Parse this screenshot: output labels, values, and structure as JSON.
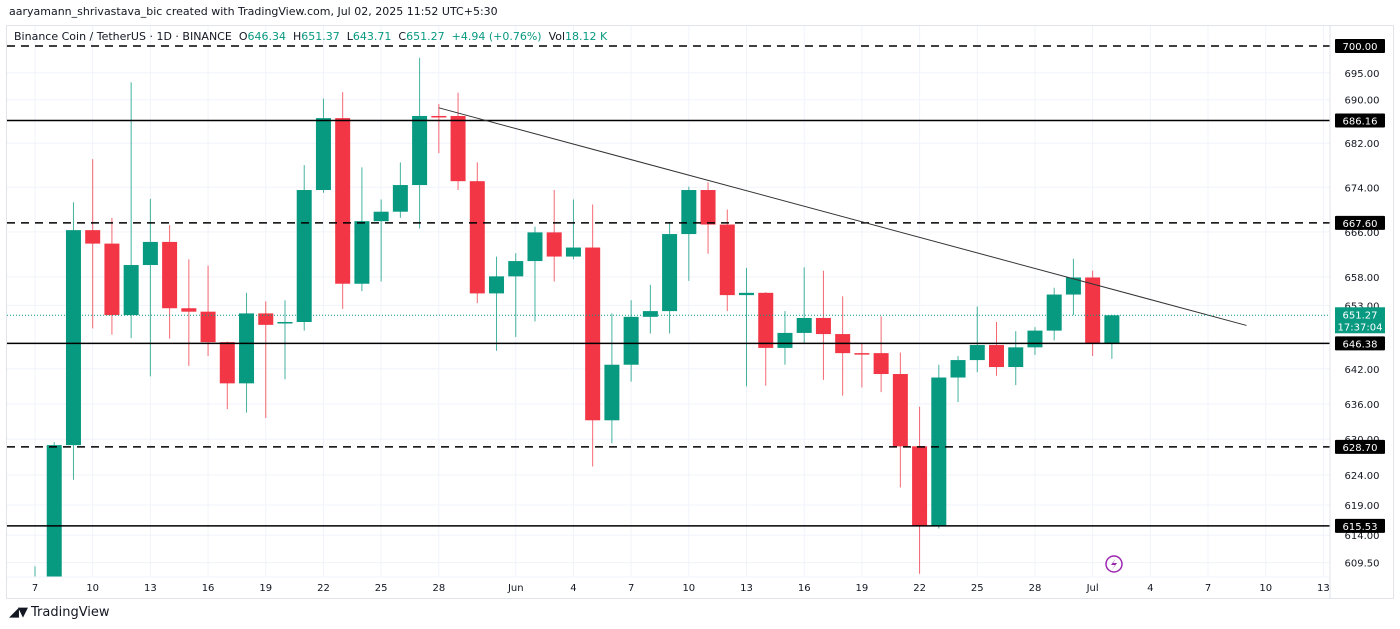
{
  "credit": "aaryamann_shrivastava_bic created with TradingView.com, Jul 02, 2025 11:52 UTC+5:30",
  "legend": {
    "symbol": "Binance Coin / TetherUS · 1D · BINANCE",
    "o_label": "O",
    "o": "646.34",
    "h_label": "H",
    "h": "651.37",
    "l_label": "L",
    "l": "643.71",
    "c_label": "C",
    "c": "651.27",
    "change": "+4.94 (+0.76%)",
    "vol_label": "Vol",
    "vol": "18.12 K"
  },
  "footer": {
    "brand": "TradingView",
    "logo": "TV"
  },
  "colors": {
    "up": "#089981",
    "down": "#f23645",
    "level": "#000000",
    "trend": "#333333",
    "grid": "#f0f3fa",
    "alert_icon": "#9c27b0"
  },
  "chart_data": {
    "type": "candlestick",
    "title": "",
    "y_scale": "log",
    "ylim": [
      607,
      703
    ],
    "grid": true,
    "y_ticks": [
      "695.00",
      "690.00",
      "682.00",
      "674.00",
      "666.00",
      "658.00",
      "653.00",
      "642.00",
      "636.00",
      "630.00",
      "624.00",
      "619.00",
      "614.00",
      "609.50"
    ],
    "x_ticks": [
      {
        "date": "May 7",
        "label": "7"
      },
      {
        "date": "May 10",
        "label": "10"
      },
      {
        "date": "May 13",
        "label": "13"
      },
      {
        "date": "May 16",
        "label": "16"
      },
      {
        "date": "May 19",
        "label": "19"
      },
      {
        "date": "May 22",
        "label": "22"
      },
      {
        "date": "May 25",
        "label": "25"
      },
      {
        "date": "May 28",
        "label": "28"
      },
      {
        "date": "Jun 1",
        "label": "Jun"
      },
      {
        "date": "Jun 4",
        "label": "4"
      },
      {
        "date": "Jun 7",
        "label": "7"
      },
      {
        "date": "Jun 10",
        "label": "10"
      },
      {
        "date": "Jun 13",
        "label": "13"
      },
      {
        "date": "Jun 16",
        "label": "16"
      },
      {
        "date": "Jun 19",
        "label": "19"
      },
      {
        "date": "Jun 22",
        "label": "22"
      },
      {
        "date": "Jun 25",
        "label": "25"
      },
      {
        "date": "Jun 28",
        "label": "28"
      },
      {
        "date": "Jul 1",
        "label": "Jul"
      },
      {
        "date": "Jul 4",
        "label": "4"
      },
      {
        "date": "Jul 7",
        "label": "7"
      },
      {
        "date": "Jul 10",
        "label": "10"
      },
      {
        "date": "Jul 13",
        "label": "13"
      }
    ],
    "candles_columns": [
      "date",
      "open",
      "high",
      "low",
      "close"
    ],
    "candles": [
      [
        "May 7",
        604.0,
        608.9,
        598.0,
        606.0
      ],
      [
        "May 8",
        605.0,
        629.5,
        600.0,
        629.0
      ],
      [
        "May 9",
        629.0,
        671.3,
        623.2,
        666.3
      ],
      [
        "May 10",
        666.3,
        679.1,
        649.0,
        663.9
      ],
      [
        "May 11",
        663.9,
        668.5,
        647.9,
        651.3
      ],
      [
        "May 12",
        651.3,
        693.2,
        647.3,
        660.1
      ],
      [
        "May 13",
        660.1,
        671.9,
        640.7,
        664.2
      ],
      [
        "May 14",
        664.2,
        667.2,
        647.2,
        652.5
      ],
      [
        "May 15",
        652.5,
        661.1,
        642.5,
        651.9
      ],
      [
        "May 16",
        651.9,
        660.0,
        644.2,
        646.6
      ],
      [
        "May 17",
        646.6,
        646.7,
        635.1,
        639.5
      ],
      [
        "May 18",
        639.5,
        655.2,
        634.5,
        651.6
      ],
      [
        "May 19",
        651.6,
        653.7,
        633.6,
        649.6
      ],
      [
        "May 20",
        649.9,
        653.9,
        640.2,
        650.1
      ],
      [
        "May 21",
        650.1,
        678.0,
        648.6,
        673.5
      ],
      [
        "May 22",
        673.5,
        690.2,
        673.0,
        686.6
      ],
      [
        "May 23",
        686.6,
        691.4,
        652.4,
        656.8
      ],
      [
        "May 24",
        656.8,
        677.6,
        655.5,
        667.9
      ],
      [
        "May 25",
        667.9,
        671.8,
        657.2,
        669.6
      ],
      [
        "May 26",
        669.6,
        678.5,
        668.5,
        674.4
      ],
      [
        "May 27",
        674.4,
        697.8,
        666.6,
        687.0
      ],
      [
        "May 28",
        687.0,
        689.2,
        680.2,
        686.9
      ],
      [
        "May 29",
        687.0,
        691.3,
        673.5,
        675.1
      ],
      [
        "May 30",
        675.1,
        678.5,
        653.4,
        655.1
      ],
      [
        "May 31",
        655.1,
        661.6,
        645.1,
        658.1
      ],
      [
        "Jun 1",
        658.1,
        662.2,
        647.5,
        660.8
      ],
      [
        "Jun 2",
        660.8,
        666.9,
        650.2,
        665.9
      ],
      [
        "Jun 3",
        665.9,
        673.5,
        657.2,
        661.6
      ],
      [
        "Jun 4",
        661.6,
        671.8,
        661.1,
        663.2
      ],
      [
        "Jun 5",
        663.2,
        670.9,
        625.4,
        633.2
      ],
      [
        "Jun 6",
        633.2,
        651.6,
        629.3,
        642.7
      ],
      [
        "Jun 7",
        642.7,
        653.9,
        639.8,
        651.0
      ],
      [
        "Jun 8",
        651.0,
        656.6,
        648.1,
        652.0
      ],
      [
        "Jun 9",
        652.0,
        667.7,
        648.1,
        665.6
      ],
      [
        "Jun 10",
        665.6,
        674.1,
        657.3,
        673.5
      ],
      [
        "Jun 11",
        673.5,
        674.9,
        662.1,
        667.3
      ],
      [
        "Jun 12",
        667.3,
        670.0,
        652.0,
        654.8
      ],
      [
        "Jun 13",
        654.8,
        659.6,
        639.0,
        655.2
      ],
      [
        "Jun 14",
        655.2,
        655.3,
        639.1,
        645.6
      ],
      [
        "Jun 15",
        645.6,
        652.0,
        642.7,
        648.2
      ],
      [
        "Jun 16",
        648.2,
        659.7,
        646.3,
        650.8
      ],
      [
        "Jun 17",
        650.8,
        659.1,
        640.1,
        648.0
      ],
      [
        "Jun 18",
        648.0,
        654.6,
        637.4,
        644.7
      ],
      [
        "Jun 19",
        644.7,
        646.3,
        638.8,
        644.6
      ],
      [
        "Jun 20",
        644.7,
        651.1,
        638.0,
        641.1
      ],
      [
        "Jun 21",
        641.1,
        644.8,
        621.9,
        628.8
      ],
      [
        "Jun 22",
        628.8,
        635.5,
        607.7,
        615.5
      ],
      [
        "Jun 23",
        615.5,
        642.7,
        615.1,
        640.5
      ],
      [
        "Jun 24",
        640.5,
        644.2,
        636.3,
        643.5
      ],
      [
        "Jun 25",
        643.5,
        652.8,
        641.4,
        646.1
      ],
      [
        "Jun 26",
        646.1,
        650.1,
        640.8,
        642.3
      ],
      [
        "Jun 27",
        642.3,
        648.5,
        639.2,
        645.7
      ],
      [
        "Jun 28",
        645.7,
        649.2,
        644.4,
        648.6
      ],
      [
        "Jun 29",
        648.6,
        656.1,
        646.9,
        654.9
      ],
      [
        "Jun 30",
        654.9,
        661.2,
        651.3,
        657.9
      ],
      [
        "Jul 1",
        657.9,
        659.1,
        644.2,
        646.4
      ],
      [
        "Jul 2",
        646.34,
        651.37,
        643.71,
        651.27
      ]
    ],
    "levels": [
      {
        "price": 700.0,
        "label": "700.00",
        "style": "dashed"
      },
      {
        "price": 686.16,
        "label": "686.16",
        "style": "solid"
      },
      {
        "price": 667.6,
        "label": "667.60",
        "style": "dashed"
      },
      {
        "price": 646.38,
        "label": "646.38",
        "style": "solid"
      },
      {
        "price": 628.7,
        "label": "628.70",
        "style": "dashed"
      },
      {
        "price": 615.53,
        "label": "615.53",
        "style": "solid"
      }
    ],
    "trendline": {
      "from": {
        "date": "May 28",
        "price": 688.5
      },
      "to": {
        "date": "Jul 9",
        "price": 649.5
      }
    },
    "last_price": {
      "price": 651.27,
      "label": "651.27",
      "countdown": "17:37:04"
    }
  }
}
